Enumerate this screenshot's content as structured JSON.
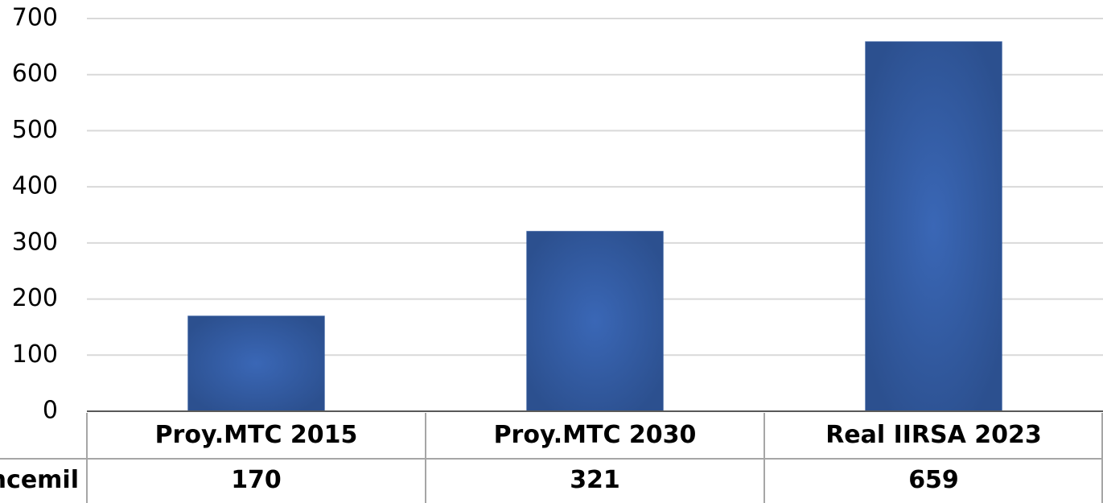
{
  "chart_data": {
    "type": "bar",
    "categories": [
      "Proy.MTC 2015",
      "Proy.MTC 2030",
      "Real IIRSA 2023"
    ],
    "series": [
      {
        "name": "ncemil",
        "color": "#3361ad",
        "values": [
          170,
          321,
          659
        ]
      }
    ],
    "ylim": [
      0,
      700
    ],
    "yticks": [
      0,
      100,
      200,
      300,
      400,
      500,
      600,
      700
    ],
    "grid": true,
    "data_table": true
  }
}
